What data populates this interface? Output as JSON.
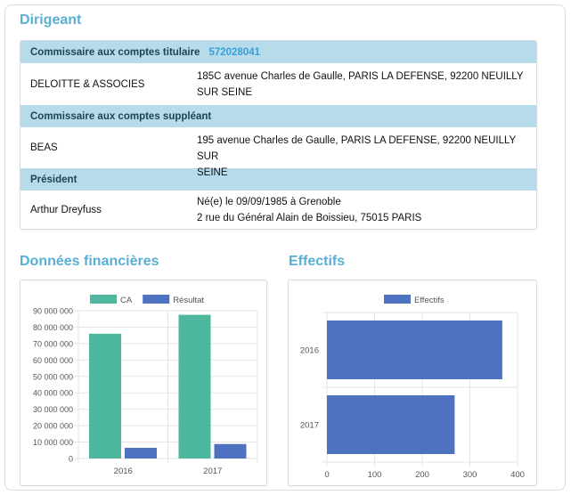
{
  "dirigeant": {
    "title": "Dirigeant",
    "sections": [
      {
        "heading": "Commissaire aux comptes titulaire",
        "number": "572028041",
        "name": "DELOITTE & ASSOCIES",
        "lines": [
          "185C avenue Charles de Gaulle, PARIS LA DEFENSE, 92200 NEUILLY",
          "SUR SEINE"
        ]
      },
      {
        "heading": "Commissaire aux comptes suppléant",
        "number": "",
        "name": "BEAS",
        "lines": [
          "195 avenue Charles de Gaulle, PARIS LA DEFENSE, 92200 NEUILLY SUR",
          "SEINE"
        ]
      },
      {
        "heading": "Président",
        "number": "",
        "name": "Arthur Dreyfuss",
        "lines": [
          "Né(e) le 09/09/1985 à Grenoble",
          "2 rue du Général Alain de Boissieu, 75015 PARIS"
        ]
      }
    ]
  },
  "financial": {
    "title": "Données financières"
  },
  "effectifs": {
    "title": "Effectifs"
  },
  "chart_data": [
    {
      "type": "bar",
      "categories": [
        "2016",
        "2017"
      ],
      "series": [
        {
          "name": "CA",
          "values": [
            76000000,
            87500000
          ],
          "color": "#4db89e"
        },
        {
          "name": "Résultat",
          "values": [
            6500000,
            8800000
          ],
          "color": "#4f72c0"
        }
      ],
      "ylim": [
        0,
        90000000
      ],
      "yticks": [
        "0",
        "10 000 000",
        "20 000 000",
        "30 000 000",
        "40 000 000",
        "50 000 000",
        "60 000 000",
        "70 000 000",
        "80 000 000",
        "90 000 000"
      ],
      "legend": "top"
    },
    {
      "type": "bar",
      "orientation": "horizontal",
      "categories": [
        "2016",
        "2017"
      ],
      "series": [
        {
          "name": "Effectifs",
          "values": [
            368,
            268
          ],
          "color": "#4f72c0"
        }
      ],
      "xlim": [
        0,
        400
      ],
      "xticks": [
        "0",
        "100",
        "200",
        "300",
        "400"
      ],
      "legend": "top"
    }
  ]
}
